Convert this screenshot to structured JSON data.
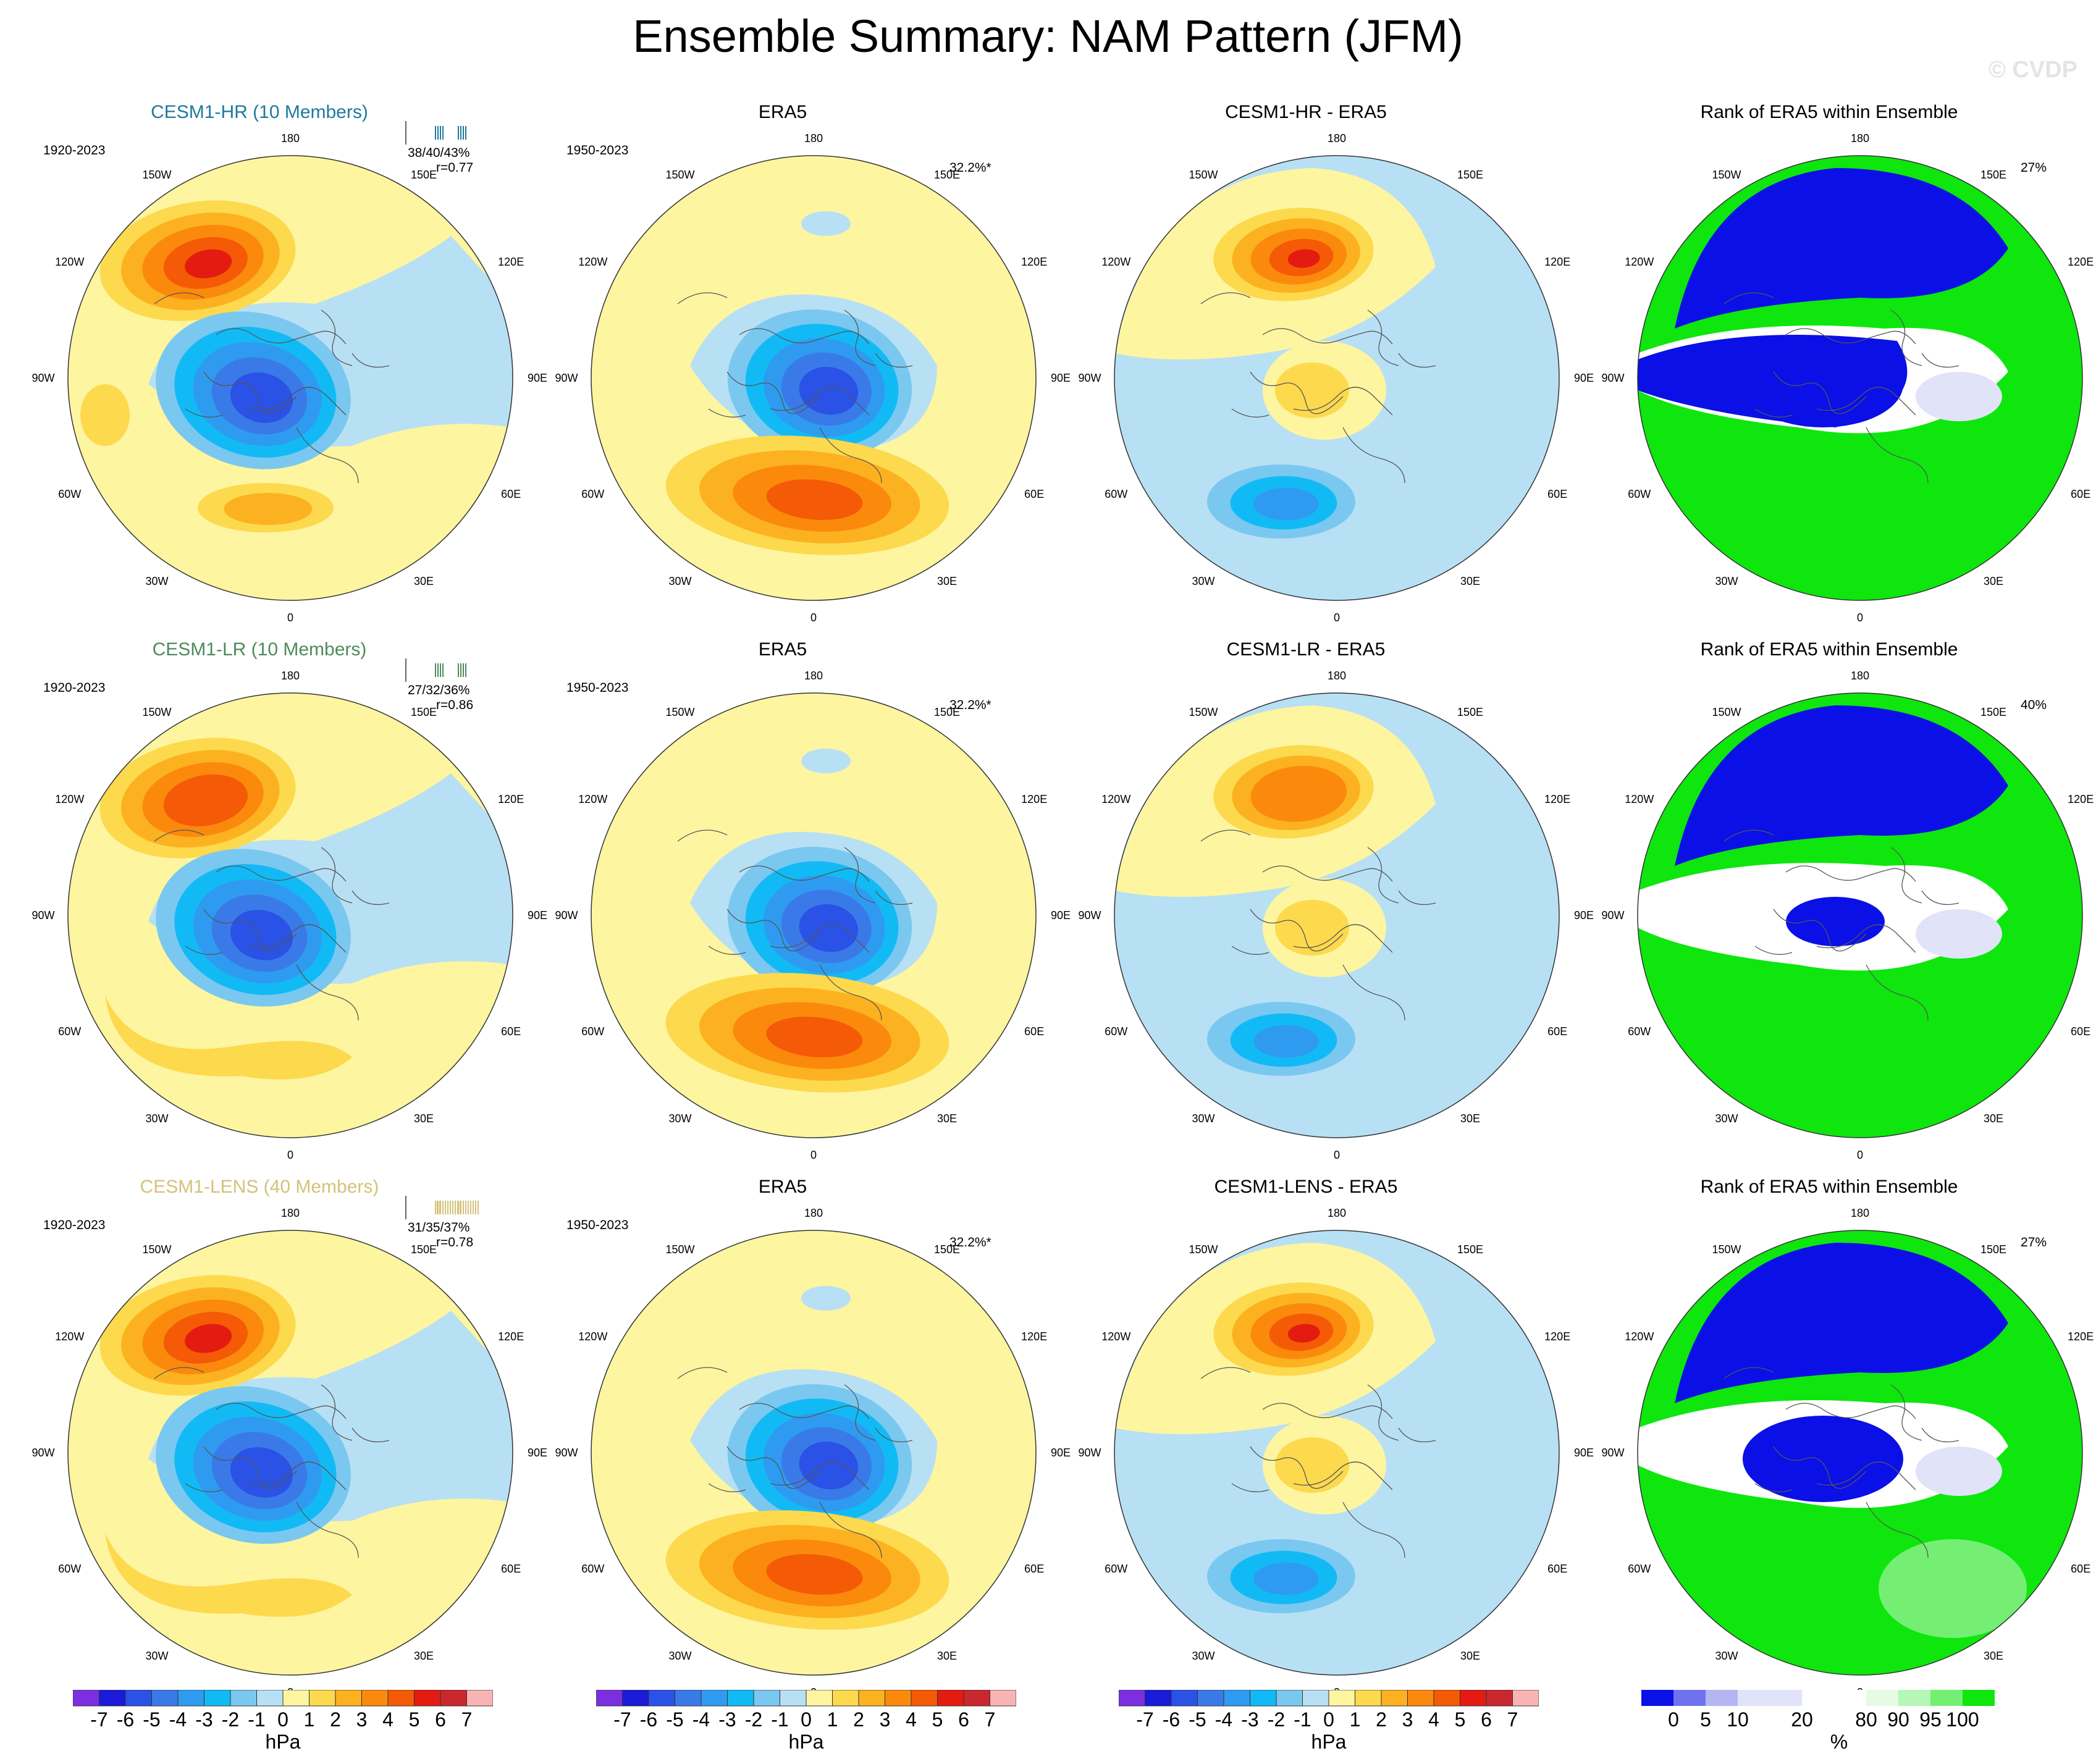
{
  "title": "Ensemble Summary: NAM Pattern (JFM)",
  "watermark": "© CVDP",
  "longitude_labels": {
    "top": "180",
    "bottom": "0",
    "ul_outer": "150W",
    "ur_outer": "150E",
    "ul_inner": "120W",
    "ur_inner": "120E",
    "left": "90W",
    "right": "90E",
    "ll_inner": "60W",
    "lr_inner": "60E",
    "ll_outer": "30W",
    "lr_outer": "30E"
  },
  "rows": [
    {
      "model_title": "CESM1-HR (10 Members)",
      "model_title_color": "#1f7a9c",
      "model_period": "1920-2023",
      "model_stats": "38/40/43%",
      "model_r": "r=0.77",
      "era5_title": "ERA5",
      "era5_period": "1950-2023",
      "era5_pct": "32.2%*",
      "diff_title": "CESM1-HR - ERA5",
      "rank_title": "Rank of ERA5 within Ensemble",
      "rank_pct": "27%"
    },
    {
      "model_title": "CESM1-LR (10 Members)",
      "model_title_color": "#4f8a5b",
      "model_period": "1920-2023",
      "model_stats": "27/32/36%",
      "model_r": "r=0.86",
      "era5_title": "ERA5",
      "era5_period": "1950-2023",
      "era5_pct": "32.2%*",
      "diff_title": "CESM1-LR - ERA5",
      "rank_title": "Rank of ERA5 within Ensemble",
      "rank_pct": "40%"
    },
    {
      "model_title": "CESM1-LENS (40 Members)",
      "model_title_color": "#d4c27a",
      "model_period": "1920-2023",
      "model_stats": "31/35/37%",
      "model_r": "r=0.78",
      "era5_title": "ERA5",
      "era5_period": "1950-2023",
      "era5_pct": "32.2%*",
      "diff_title": "CESM1-LENS - ERA5",
      "rank_title": "Rank of ERA5 within Ensemble",
      "rank_pct": "27%"
    }
  ],
  "hpa_colorbar": {
    "units": "hPa",
    "labels": [
      "-7",
      "-6",
      "-5",
      "-4",
      "-3",
      "-2",
      "-1",
      "0",
      "1",
      "2",
      "3",
      "4",
      "5",
      "6",
      "7"
    ],
    "colors": [
      "#7b2fe0",
      "#1a1ad8",
      "#2a52e6",
      "#3a7ae8",
      "#2f9bf0",
      "#12baf5",
      "#7ac8f0",
      "#b8e0f4",
      "#fdf5a0",
      "#fdd94e",
      "#fcb220",
      "#fb8a0c",
      "#f55a06",
      "#e41b10",
      "#c8282e",
      "#f8b4b4"
    ]
  },
  "rank_colorbar": {
    "units": "%",
    "labels": [
      "0",
      "5",
      "10",
      "20",
      "80",
      "90",
      "95",
      "100"
    ],
    "colors": [
      "#0a10e6",
      "#6f72ec",
      "#b3b6f3",
      "#e1e3f8",
      "#ffffff",
      "#e6fbe6",
      "#b6f6b6",
      "#74ef74",
      "#0ee60e"
    ]
  }
}
